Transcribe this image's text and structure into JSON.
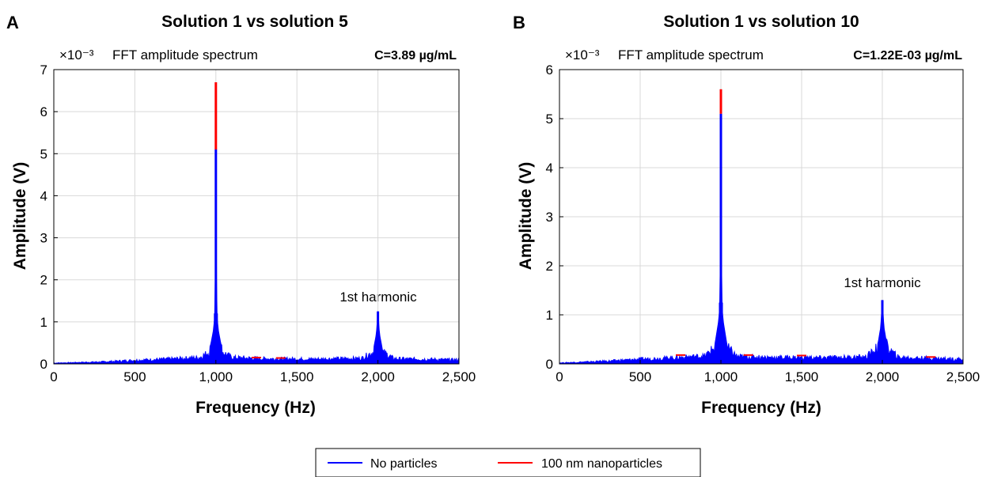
{
  "chart_data": [
    {
      "type": "line",
      "panel_letter": "A",
      "title": "Solution 1 vs solution 5",
      "subtitle": "FFT amplitude spectrum",
      "exponent_label": "×10⁻³",
      "concentration": "C=3.89 µg/mL",
      "xlabel": "Frequency (Hz)",
      "ylabel": "Amplitude (V)",
      "xlim": [
        0,
        2500
      ],
      "ylim": [
        0,
        7
      ],
      "x_ticks": [
        0,
        500,
        1000,
        1500,
        2000,
        2500
      ],
      "x_tick_labels": [
        "0",
        "500",
        "1,000",
        "1,500",
        "2,000",
        "2,500"
      ],
      "y_ticks": [
        0,
        1,
        2,
        3,
        4,
        5,
        6,
        7
      ],
      "y_tick_labels": [
        "0",
        "1",
        "2",
        "3",
        "4",
        "5",
        "6",
        "7"
      ],
      "grid": true,
      "annotation": {
        "text": "1st harmonic",
        "x": 2000,
        "y": 1.5
      },
      "series": [
        {
          "name": "No particles",
          "color": "#0000ff",
          "points": [
            [
              0,
              0.02
            ],
            [
              300,
              0.05
            ],
            [
              500,
              0.09
            ],
            [
              700,
              0.12
            ],
            [
              900,
              0.16
            ],
            [
              960,
              0.3
            ],
            [
              985,
              0.8
            ],
            [
              995,
              1.2
            ],
            [
              1000,
              5.1
            ],
            [
              1005,
              1.2
            ],
            [
              1015,
              0.8
            ],
            [
              1040,
              0.3
            ],
            [
              1100,
              0.16
            ],
            [
              1300,
              0.13
            ],
            [
              1600,
              0.12
            ],
            [
              1900,
              0.14
            ],
            [
              1970,
              0.3
            ],
            [
              1990,
              0.7
            ],
            [
              2000,
              1.25
            ],
            [
              2010,
              0.7
            ],
            [
              2030,
              0.3
            ],
            [
              2100,
              0.13
            ],
            [
              2500,
              0.1
            ]
          ]
        },
        {
          "name": "100 nm nanoparticles",
          "color": "#ff0000",
          "points": [
            [
              1000,
              6.7
            ],
            [
              1250,
              0.15
            ],
            [
              1400,
              0.14
            ]
          ]
        }
      ]
    },
    {
      "type": "line",
      "panel_letter": "B",
      "title": "Solution 1 vs solution 10",
      "subtitle": "FFT amplitude spectrum",
      "exponent_label": "×10⁻³",
      "concentration": "C=1.22E-03 µg/mL",
      "xlabel": "Frequency (Hz)",
      "ylabel": "Amplitude (V)",
      "xlim": [
        0,
        2500
      ],
      "ylim": [
        0,
        6
      ],
      "x_ticks": [
        0,
        500,
        1000,
        1500,
        2000,
        2500
      ],
      "x_tick_labels": [
        "0",
        "500",
        "1,000",
        "1,500",
        "2,000",
        "2,500"
      ],
      "y_ticks": [
        0,
        1,
        2,
        3,
        4,
        5,
        6
      ],
      "y_tick_labels": [
        "0",
        "1",
        "2",
        "3",
        "4",
        "5",
        "6"
      ],
      "grid": true,
      "annotation": {
        "text": "1st harmonic",
        "x": 2000,
        "y": 1.55
      },
      "series": [
        {
          "name": "No particles",
          "color": "#0000ff",
          "points": [
            [
              0,
              0.02
            ],
            [
              300,
              0.06
            ],
            [
              500,
              0.1
            ],
            [
              700,
              0.13
            ],
            [
              900,
              0.17
            ],
            [
              960,
              0.35
            ],
            [
              985,
              0.85
            ],
            [
              995,
              1.25
            ],
            [
              1000,
              5.1
            ],
            [
              1005,
              1.25
            ],
            [
              1015,
              0.85
            ],
            [
              1040,
              0.35
            ],
            [
              1100,
              0.16
            ],
            [
              1300,
              0.14
            ],
            [
              1600,
              0.13
            ],
            [
              1900,
              0.15
            ],
            [
              1970,
              0.35
            ],
            [
              1990,
              0.75
            ],
            [
              2000,
              1.3
            ],
            [
              2010,
              0.75
            ],
            [
              2030,
              0.35
            ],
            [
              2100,
              0.14
            ],
            [
              2500,
              0.1
            ]
          ]
        },
        {
          "name": "100 nm nanoparticles",
          "color": "#ff0000",
          "points": [
            [
              1000,
              5.6
            ],
            [
              750,
              0.18
            ],
            [
              1170,
              0.18
            ],
            [
              1500,
              0.17
            ],
            [
              2300,
              0.14
            ]
          ]
        }
      ]
    }
  ],
  "legend": {
    "items": [
      {
        "label": "No particles",
        "color": "#0000ff"
      },
      {
        "label": "100 nm nanoparticles",
        "color": "#ff0000"
      }
    ]
  }
}
